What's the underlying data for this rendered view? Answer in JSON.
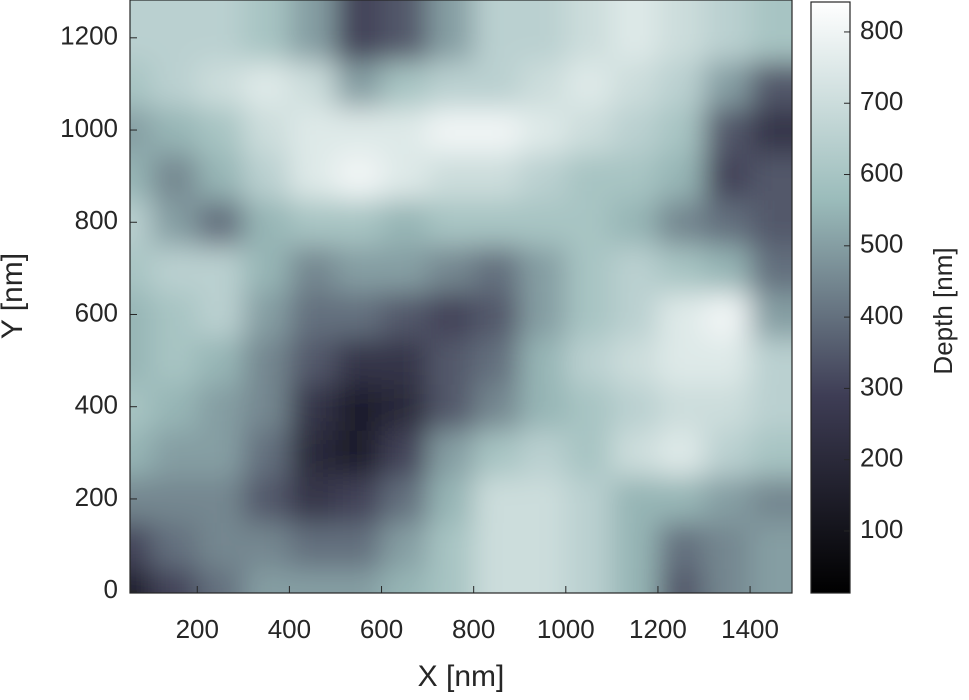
{
  "chart_data": {
    "type": "contourf",
    "x_label": "X [nm]",
    "y_label": "Y [nm]",
    "colorbar_label": "Depth [nm]",
    "x": [
      50,
      150,
      250,
      350,
      450,
      550,
      650,
      750,
      850,
      950,
      1050,
      1150,
      1250,
      1350,
      1450
    ],
    "y": [
      0,
      100,
      200,
      300,
      400,
      500,
      600,
      700,
      800,
      900,
      1000,
      1100,
      1200
    ],
    "z": [
      [
        150,
        300,
        400,
        500,
        500,
        500,
        550,
        600,
        700,
        700,
        650,
        550,
        350,
        450,
        500
      ],
      [
        300,
        400,
        450,
        450,
        400,
        400,
        500,
        600,
        700,
        700,
        650,
        550,
        400,
        450,
        500
      ],
      [
        450,
        450,
        450,
        350,
        250,
        300,
        400,
        550,
        700,
        700,
        650,
        550,
        550,
        500,
        450
      ],
      [
        550,
        500,
        500,
        400,
        200,
        150,
        300,
        500,
        600,
        650,
        600,
        700,
        750,
        650,
        600
      ],
      [
        600,
        550,
        500,
        450,
        250,
        150,
        200,
        350,
        450,
        550,
        600,
        650,
        700,
        700,
        650
      ],
      [
        550,
        600,
        550,
        450,
        350,
        250,
        250,
        350,
        400,
        550,
        650,
        700,
        750,
        750,
        650
      ],
      [
        550,
        600,
        650,
        500,
        400,
        400,
        350,
        300,
        350,
        500,
        600,
        650,
        750,
        800,
        500
      ],
      [
        600,
        650,
        650,
        550,
        450,
        500,
        500,
        450,
        400,
        500,
        600,
        650,
        600,
        550,
        400
      ],
      [
        650,
        500,
        400,
        550,
        600,
        600,
        550,
        600,
        600,
        600,
        600,
        550,
        450,
        400,
        350
      ],
      [
        550,
        450,
        550,
        650,
        750,
        800,
        750,
        700,
        700,
        650,
        600,
        600,
        550,
        300,
        350
      ],
      [
        500,
        550,
        600,
        700,
        750,
        750,
        750,
        800,
        800,
        750,
        700,
        650,
        600,
        350,
        250
      ],
      [
        600,
        650,
        700,
        750,
        700,
        500,
        600,
        650,
        650,
        700,
        750,
        700,
        650,
        500,
        350
      ],
      [
        650,
        650,
        650,
        600,
        500,
        300,
        350,
        500,
        650,
        650,
        700,
        750,
        700,
        650,
        600
      ]
    ],
    "xlim": [
      54,
      1491
    ],
    "ylim": [
      -4,
      1282
    ],
    "xticks": [
      200,
      400,
      600,
      800,
      1000,
      1200,
      1400
    ],
    "yticks": [
      0,
      200,
      400,
      600,
      800,
      1000,
      1200
    ],
    "clim": [
      13,
      842
    ],
    "cticks": [
      100,
      200,
      300,
      400,
      500,
      600,
      700,
      800
    ],
    "colormap": [
      "#000000",
      "#3e3d55",
      "#9bbcbb",
      "#ffffff"
    ]
  }
}
